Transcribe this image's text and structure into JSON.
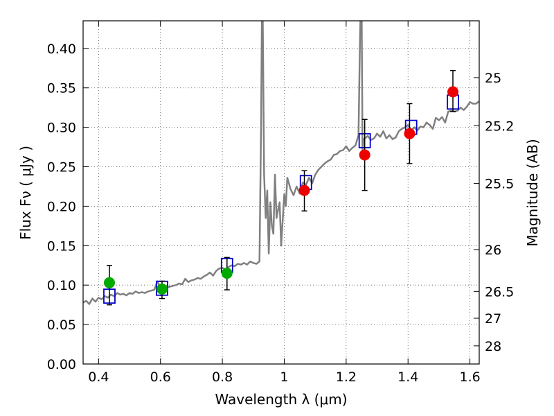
{
  "chart_data": {
    "type": "scatter",
    "xlabel": "Wavelength  λ (μm)",
    "ylabel": "Flux  Fν  ( μJy )",
    "y2label": "Magnitude (AB)",
    "xlim": [
      0.35,
      1.63
    ],
    "ylim": [
      0.0,
      0.435
    ],
    "grid": true,
    "x_ticks": [
      {
        "value": 0.4,
        "label": "0.4"
      },
      {
        "value": 0.6,
        "label": "0.6"
      },
      {
        "value": 0.8,
        "label": "0.8"
      },
      {
        "value": 1.0,
        "label": "1"
      },
      {
        "value": 1.2,
        "label": "1.2"
      },
      {
        "value": 1.4,
        "label": "1.4"
      },
      {
        "value": 1.6,
        "label": "1.6"
      }
    ],
    "y_ticks": [
      {
        "value": 0.0,
        "label": "0.00"
      },
      {
        "value": 0.05,
        "label": "0.05"
      },
      {
        "value": 0.1,
        "label": "0.10"
      },
      {
        "value": 0.15,
        "label": "0.15"
      },
      {
        "value": 0.2,
        "label": "0.20"
      },
      {
        "value": 0.25,
        "label": "0.25"
      },
      {
        "value": 0.3,
        "label": "0.30"
      },
      {
        "value": 0.35,
        "label": "0.35"
      },
      {
        "value": 0.4,
        "label": "0.40"
      }
    ],
    "y2_ticks": [
      {
        "label": "25",
        "flux": 0.363
      },
      {
        "label": "25.2",
        "flux": 0.302
      },
      {
        "label": "25.5",
        "flux": 0.229
      },
      {
        "label": "26",
        "flux": 0.145
      },
      {
        "label": "26.5",
        "flux": 0.092
      },
      {
        "label": "27",
        "flux": 0.058
      },
      {
        "label": "28",
        "flux": 0.023
      }
    ],
    "colors": {
      "model_line": "#808080",
      "model_box": "#0000cc",
      "obs_green": "#00aa00",
      "obs_red": "#ee0000",
      "errorbar": "#000000",
      "grid": "#555555"
    },
    "series": [
      {
        "kind": "line",
        "x": [
          0.35,
          0.36,
          0.37,
          0.38,
          0.39,
          0.4,
          0.41,
          0.42,
          0.43,
          0.44,
          0.45,
          0.46,
          0.47,
          0.48,
          0.49,
          0.5,
          0.51,
          0.52,
          0.53,
          0.54,
          0.55,
          0.56,
          0.57,
          0.58,
          0.59,
          0.6,
          0.61,
          0.62,
          0.63,
          0.64,
          0.65,
          0.66,
          0.67,
          0.68,
          0.69,
          0.7,
          0.71,
          0.72,
          0.73,
          0.74,
          0.75,
          0.76,
          0.77,
          0.78,
          0.79,
          0.8,
          0.81,
          0.82,
          0.83,
          0.84,
          0.85,
          0.86,
          0.87,
          0.88,
          0.89,
          0.9,
          0.91,
          0.92,
          0.925,
          0.928,
          0.93,
          0.935,
          0.94,
          0.945,
          0.95,
          0.955,
          0.96,
          0.965,
          0.97,
          0.975,
          0.98,
          0.985,
          0.99,
          0.995,
          1.0,
          1.005,
          1.01,
          1.02,
          1.03,
          1.04,
          1.05,
          1.06,
          1.07,
          1.08,
          1.09,
          1.1,
          1.11,
          1.12,
          1.13,
          1.14,
          1.15,
          1.16,
          1.17,
          1.18,
          1.19,
          1.2,
          1.21,
          1.22,
          1.23,
          1.24,
          1.245,
          1.248,
          1.25,
          1.253,
          1.256,
          1.26,
          1.27,
          1.28,
          1.29,
          1.3,
          1.31,
          1.32,
          1.33,
          1.34,
          1.35,
          1.36,
          1.37,
          1.38,
          1.39,
          1.4,
          1.41,
          1.42,
          1.43,
          1.44,
          1.45,
          1.46,
          1.47,
          1.48,
          1.49,
          1.5,
          1.51,
          1.52,
          1.53,
          1.54,
          1.55,
          1.56,
          1.57,
          1.58,
          1.59,
          1.6,
          1.61,
          1.62,
          1.63
        ],
        "y": [
          0.078,
          0.08,
          0.076,
          0.083,
          0.079,
          0.084,
          0.082,
          0.086,
          0.084,
          0.088,
          0.086,
          0.09,
          0.088,
          0.089,
          0.087,
          0.09,
          0.089,
          0.092,
          0.09,
          0.091,
          0.09,
          0.092,
          0.093,
          0.094,
          0.105,
          0.096,
          0.095,
          0.097,
          0.098,
          0.099,
          0.1,
          0.102,
          0.101,
          0.108,
          0.104,
          0.106,
          0.107,
          0.109,
          0.108,
          0.111,
          0.113,
          0.116,
          0.112,
          0.118,
          0.121,
          0.122,
          0.12,
          0.123,
          0.125,
          0.124,
          0.127,
          0.126,
          0.128,
          0.126,
          0.13,
          0.128,
          0.127,
          0.13,
          0.3,
          0.455,
          0.46,
          0.24,
          0.185,
          0.22,
          0.14,
          0.205,
          0.175,
          0.165,
          0.24,
          0.185,
          0.195,
          0.205,
          0.15,
          0.182,
          0.215,
          0.2,
          0.236,
          0.222,
          0.214,
          0.225,
          0.216,
          0.23,
          0.227,
          0.236,
          0.229,
          0.24,
          0.246,
          0.25,
          0.254,
          0.257,
          0.259,
          0.265,
          0.266,
          0.27,
          0.271,
          0.276,
          0.27,
          0.274,
          0.277,
          0.29,
          0.42,
          0.46,
          0.455,
          0.27,
          0.285,
          0.286,
          0.289,
          0.284,
          0.286,
          0.292,
          0.288,
          0.295,
          0.286,
          0.29,
          0.285,
          0.287,
          0.295,
          0.298,
          0.3,
          0.303,
          0.296,
          0.3,
          0.296,
          0.301,
          0.3,
          0.306,
          0.303,
          0.298,
          0.312,
          0.309,
          0.313,
          0.306,
          0.32,
          0.321,
          0.32,
          0.321,
          0.325,
          0.322,
          0.326,
          0.332,
          0.33,
          0.33,
          0.333
        ]
      },
      {
        "kind": "boxes",
        "x": [
          0.435,
          0.605,
          0.815,
          1.07,
          1.26,
          1.41,
          1.545
        ],
        "y": [
          0.086,
          0.096,
          0.125,
          0.23,
          0.283,
          0.3,
          0.332
        ]
      },
      {
        "kind": "points",
        "color": "green",
        "x": [
          0.435,
          0.605,
          0.815
        ],
        "y": [
          0.103,
          0.095,
          0.115
        ],
        "err_low": [
          0.028,
          0.012,
          0.021
        ],
        "err_high": [
          0.022,
          0.01,
          0.02
        ]
      },
      {
        "kind": "points",
        "color": "red",
        "x": [
          1.065,
          1.26,
          1.405,
          1.545
        ],
        "y": [
          0.22,
          0.265,
          0.292,
          0.345
        ],
        "err_low": [
          0.026,
          0.045,
          0.038,
          0.025
        ],
        "err_high": [
          0.025,
          0.045,
          0.038,
          0.027
        ]
      }
    ]
  }
}
